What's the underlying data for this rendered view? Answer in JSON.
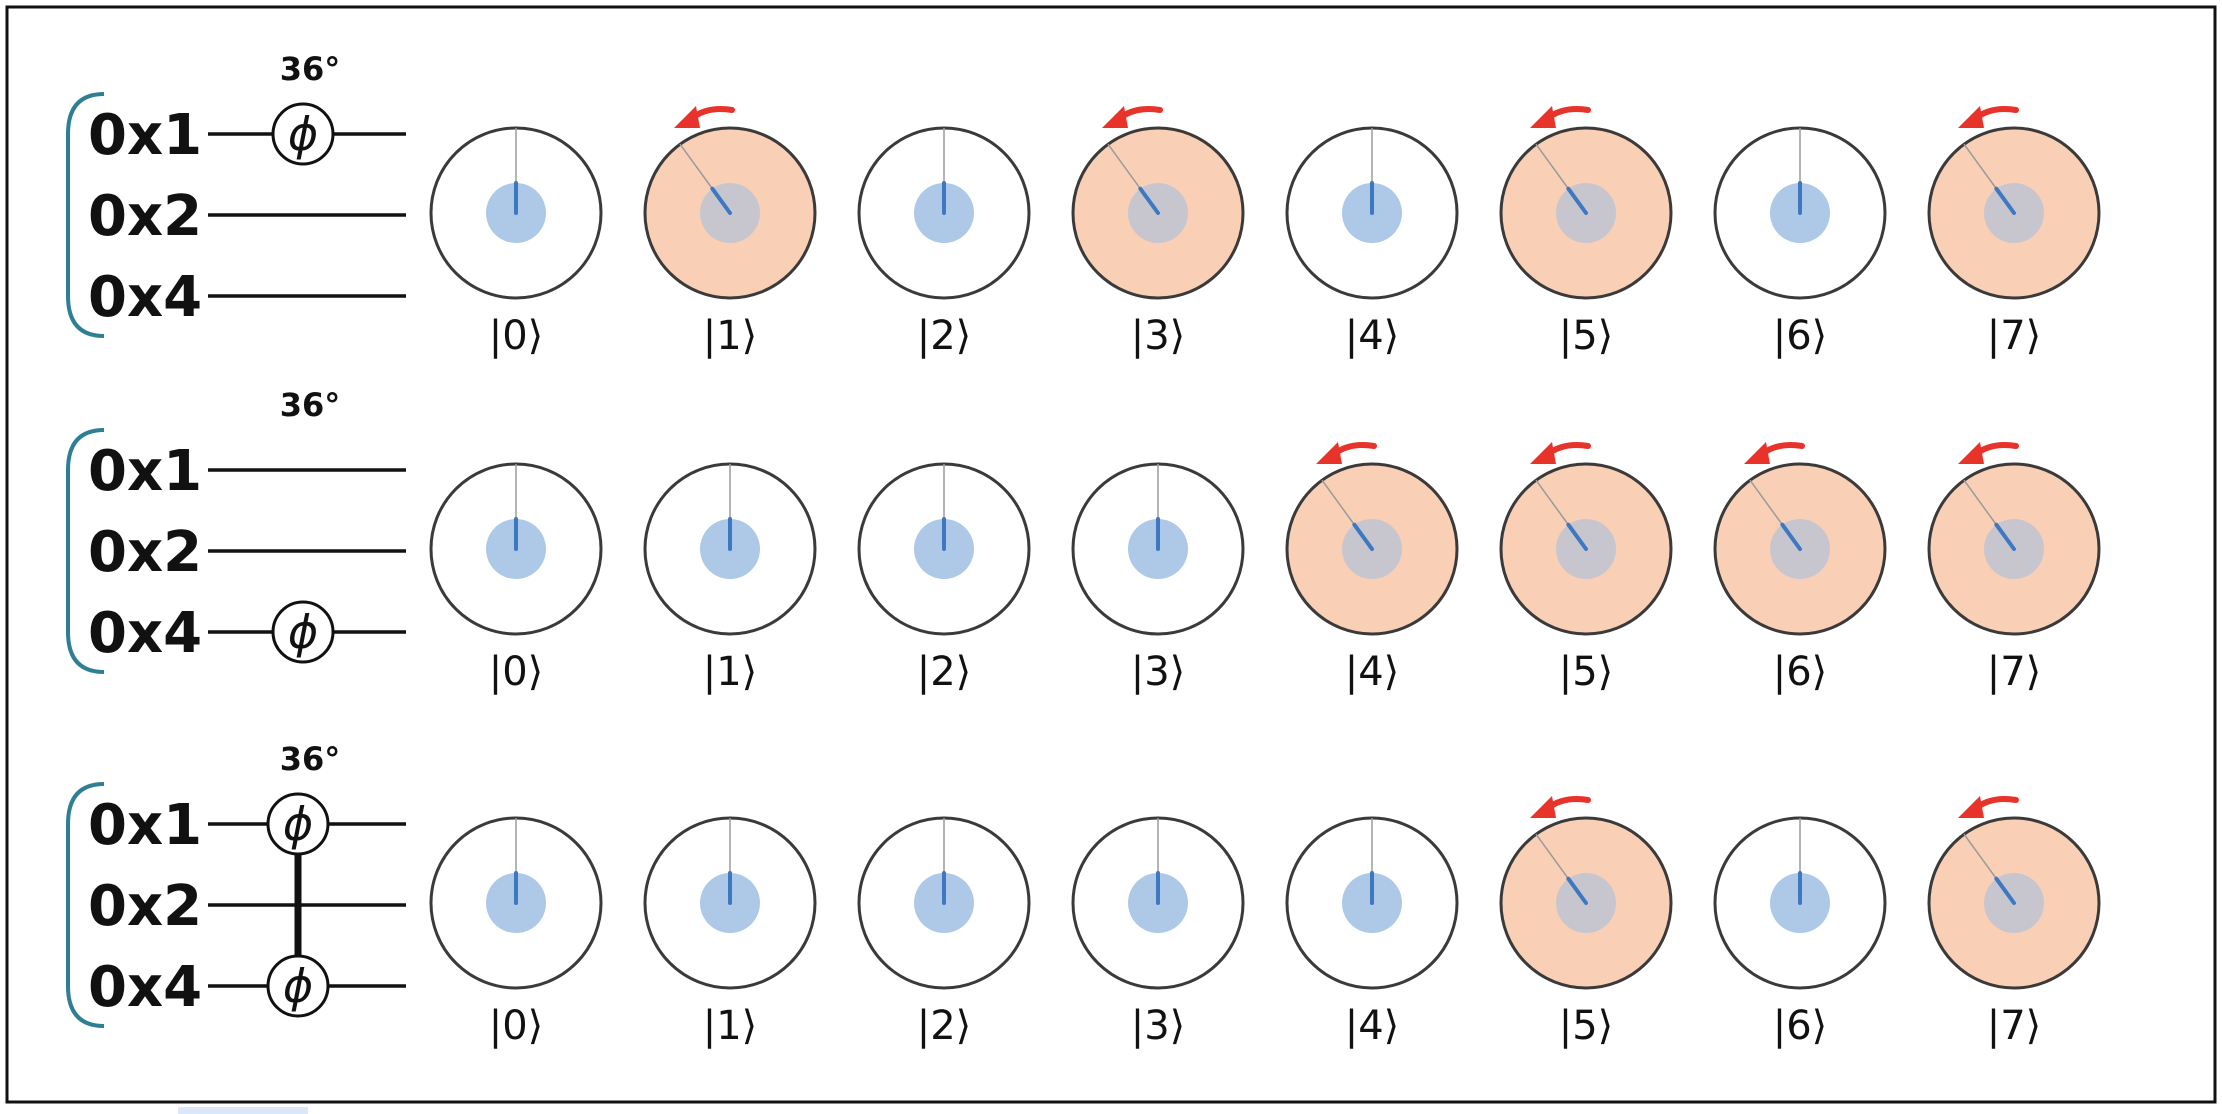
{
  "colors": {
    "frame": "#111111",
    "wire": "#111111",
    "bracket": "#2e7f96",
    "circle_outline": "#3a3a3a",
    "active_fill": "#f9cfb6",
    "inactive_fill": "#ffffff",
    "magnitude_disc": "#9fbfe3",
    "phase_line": "#3d78c1",
    "reference_line": "#9a9a9a",
    "rotation_arrow": "#e8332a",
    "sidebar_swatch": "#dbe8f7"
  },
  "icons": {
    "gate": "phi-gate-icon",
    "arrow": "rotation-arrow-icon"
  },
  "panels": [
    {
      "registers": [
        "0x1",
        "0x2",
        "0x4"
      ],
      "angle_label": "36°",
      "gate_symbol": "ϕ",
      "gates_on": [
        0
      ],
      "controlled": false,
      "states": [
        "|0⟩",
        "|1⟩",
        "|2⟩",
        "|3⟩",
        "|4⟩",
        "|5⟩",
        "|6⟩",
        "|7⟩"
      ],
      "rotated": [
        false,
        true,
        false,
        true,
        false,
        true,
        false,
        true
      ]
    },
    {
      "registers": [
        "0x1",
        "0x2",
        "0x4"
      ],
      "angle_label": "36°",
      "gate_symbol": "ϕ",
      "gates_on": [
        2
      ],
      "controlled": false,
      "states": [
        "|0⟩",
        "|1⟩",
        "|2⟩",
        "|3⟩",
        "|4⟩",
        "|5⟩",
        "|6⟩",
        "|7⟩"
      ],
      "rotated": [
        false,
        false,
        false,
        false,
        true,
        true,
        true,
        true
      ]
    },
    {
      "registers": [
        "0x1",
        "0x2",
        "0x4"
      ],
      "angle_label": "36°",
      "gate_symbol": "ϕ",
      "gates_on": [
        0,
        2
      ],
      "controlled": true,
      "states": [
        "|0⟩",
        "|1⟩",
        "|2⟩",
        "|3⟩",
        "|4⟩",
        "|5⟩",
        "|6⟩",
        "|7⟩"
      ],
      "rotated": [
        false,
        false,
        false,
        false,
        false,
        true,
        false,
        true
      ]
    }
  ]
}
